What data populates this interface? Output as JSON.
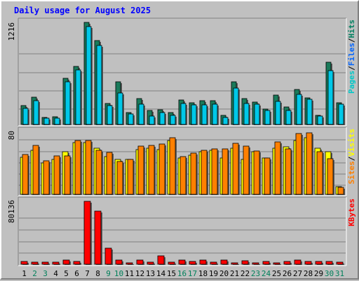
{
  "chart_data": {
    "type": "bar",
    "title": "Daily usage for August 2025",
    "days": [
      {
        "label": "1",
        "weekend": false
      },
      {
        "label": "2",
        "weekend": true
      },
      {
        "label": "3",
        "weekend": true
      },
      {
        "label": "4",
        "weekend": false
      },
      {
        "label": "5",
        "weekend": false
      },
      {
        "label": "6",
        "weekend": false
      },
      {
        "label": "7",
        "weekend": false
      },
      {
        "label": "8",
        "weekend": false
      },
      {
        "label": "9",
        "weekend": true
      },
      {
        "label": "10",
        "weekend": true
      },
      {
        "label": "11",
        "weekend": false
      },
      {
        "label": "12",
        "weekend": false
      },
      {
        "label": "13",
        "weekend": false
      },
      {
        "label": "14",
        "weekend": false
      },
      {
        "label": "15",
        "weekend": false
      },
      {
        "label": "16",
        "weekend": true
      },
      {
        "label": "17",
        "weekend": true
      },
      {
        "label": "18",
        "weekend": false
      },
      {
        "label": "19",
        "weekend": false
      },
      {
        "label": "20",
        "weekend": false
      },
      {
        "label": "21",
        "weekend": false
      },
      {
        "label": "22",
        "weekend": false
      },
      {
        "label": "23",
        "weekend": true
      },
      {
        "label": "24",
        "weekend": true
      },
      {
        "label": "25",
        "weekend": false
      },
      {
        "label": "26",
        "weekend": false
      },
      {
        "label": "27",
        "weekend": false
      },
      {
        "label": "28",
        "weekend": false
      },
      {
        "label": "29",
        "weekend": false
      },
      {
        "label": "30",
        "weekend": true
      },
      {
        "label": "31",
        "weekend": true
      }
    ],
    "panels": [
      {
        "id": "hits-files",
        "scale_label": "1216",
        "max": 1216,
        "legend": [
          {
            "text": "Pages",
            "color": "#00c8c8"
          },
          {
            "text": "/",
            "color": "#000000"
          },
          {
            "text": "Files",
            "color": "#0064ff"
          },
          {
            "text": "/",
            "color": "#000000"
          },
          {
            "text": "Hits",
            "color": "#008060"
          }
        ],
        "series": [
          {
            "name": "Hits",
            "color": "#1a7a5a",
            "values": [
              226,
              322,
              83,
              92,
              549,
              693,
              1216,
              1000,
              249,
              506,
              139,
              306,
              167,
              172,
              139,
              292,
              256,
              284,
              280,
              109,
              508,
              312,
              269,
              186,
              349,
              207,
              417,
              315,
              108,
              745,
              257
            ]
          },
          {
            "name": "Files",
            "color": "#00c8e8",
            "values": [
              191,
              281,
              71,
              72,
              506,
              652,
              1164,
              940,
              228,
              374,
              123,
              245,
              100,
              139,
              108,
              254,
              235,
              234,
              243,
              81,
              430,
              248,
              243,
              166,
              272,
              163,
              360,
              296,
              96,
              645,
              241
            ]
          },
          {
            "name": "Pages",
            "color": "#0064ff",
            "values": [
              0,
              0,
              0,
              0,
              0,
              0,
              0,
              0,
              0,
              0,
              0,
              0,
              0,
              0,
              0,
              0,
              0,
              0,
              0,
              0,
              0,
              0,
              0,
              0,
              0,
              0,
              0,
              0,
              0,
              0,
              0
            ]
          }
        ]
      },
      {
        "id": "visits-sites",
        "scale_label": "80",
        "max": 80,
        "legend": [
          {
            "text": "Sites",
            "color": "#ff8000"
          },
          {
            "text": "/",
            "color": "#000000"
          },
          {
            "text": "Visits",
            "color": "#ffff00"
          }
        ],
        "series": [
          {
            "name": "Visits",
            "color": "#ffff00",
            "values": [
              47,
              56,
              40,
              44,
              54,
              66,
              66,
              59,
              48,
              44,
              44,
              57,
              59,
              57,
              68,
              46,
              50,
              54,
              56,
              46,
              59,
              44,
              54,
              46,
              59,
              60,
              68,
              72,
              59,
              54,
              10
            ]
          },
          {
            "name": "Sites",
            "color": "#ff8000",
            "values": [
              51,
              62,
              43,
              49,
              49,
              68,
              68,
              56,
              53,
              42,
              44,
              61,
              62,
              64,
              72,
              48,
              52,
              56,
              58,
              58,
              65,
              61,
              55,
              46,
              67,
              58,
              77,
              78,
              54,
              45,
              9
            ]
          }
        ]
      },
      {
        "id": "kbytes",
        "scale_label": "80136",
        "max": 80136,
        "legend": [
          {
            "text": "KBytes",
            "color": "#ff0000"
          }
        ],
        "series": [
          {
            "name": "KBytes",
            "color": "#ff0000",
            "values": [
              3700,
              3100,
              2700,
              2900,
              5300,
              3600,
              80136,
              68000,
              20900,
              5500,
              2100,
              5100,
              2900,
              10500,
              3000,
              5300,
              3700,
              5100,
              2500,
              5500,
              2100,
              4500,
              1900,
              3200,
              1900,
              3200,
              5200,
              3700,
              3900,
              3600,
              2800
            ]
          }
        ]
      }
    ]
  }
}
